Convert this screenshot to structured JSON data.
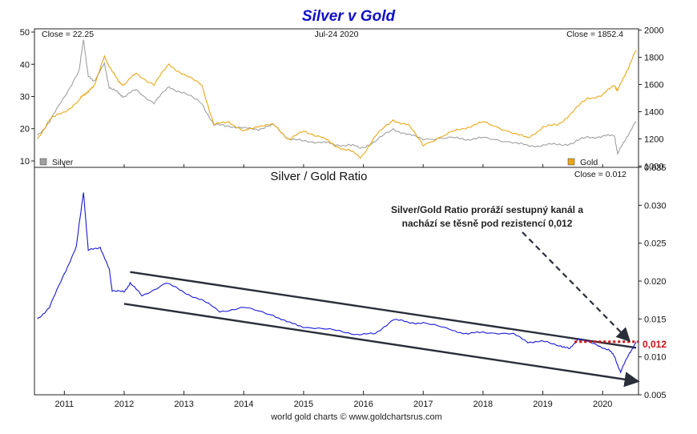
{
  "chart_data": [
    {
      "type": "line",
      "title": "Silver v Gold",
      "header_left": "Close = 22.25",
      "header_center": "Jul-24  2020",
      "header_right": "Close = 1852.4",
      "x_ticks": [
        "2011",
        "2012",
        "2013",
        "2014",
        "2015",
        "2016",
        "2017",
        "2018",
        "2019",
        "2020"
      ],
      "y_left_ticks": [
        "50",
        "40",
        "30",
        "20",
        "10"
      ],
      "y_left_range": [
        8,
        51
      ],
      "y_right_ticks": [
        "2000",
        "1800",
        "1600",
        "1400",
        "1200",
        "1000"
      ],
      "y_right_range": [
        990,
        2010
      ],
      "x": [
        2010.55,
        2010.75,
        2011.0,
        2011.25,
        2011.32,
        2011.4,
        2011.5,
        2011.67,
        2011.75,
        2011.9,
        2012.0,
        2012.2,
        2012.5,
        2012.75,
        2013.0,
        2013.3,
        2013.5,
        2013.75,
        2014.0,
        2014.25,
        2014.5,
        2014.75,
        2015.0,
        2015.3,
        2015.5,
        2015.75,
        2015.95,
        2016.2,
        2016.5,
        2016.75,
        2017.0,
        2017.5,
        2017.75,
        2018.0,
        2018.5,
        2018.75,
        2019.0,
        2019.25,
        2019.5,
        2019.75,
        2020.0,
        2020.2,
        2020.25,
        2020.4,
        2020.56
      ],
      "series": [
        {
          "name": "Silver",
          "color": "#a0a0a0",
          "axis": "left",
          "values": [
            18,
            22,
            30,
            38,
            48,
            36,
            35,
            40,
            33,
            31,
            30,
            32,
            28,
            33,
            31,
            28,
            21,
            21,
            20,
            20,
            21,
            17,
            16,
            16,
            15,
            15,
            14,
            16,
            20,
            18,
            17,
            17,
            16.8,
            17,
            16,
            14.5,
            15,
            15,
            15.5,
            17.5,
            17.5,
            18,
            12,
            17.5,
            22.25
          ]
        },
        {
          "name": "Gold",
          "color": "#e8a818",
          "axis": "right",
          "values": [
            1200,
            1340,
            1400,
            1480,
            1530,
            1540,
            1600,
            1800,
            1740,
            1620,
            1600,
            1680,
            1600,
            1750,
            1670,
            1600,
            1300,
            1330,
            1250,
            1300,
            1300,
            1200,
            1250,
            1220,
            1150,
            1120,
            1060,
            1220,
            1340,
            1300,
            1160,
            1250,
            1290,
            1320,
            1250,
            1200,
            1290,
            1300,
            1400,
            1500,
            1520,
            1600,
            1550,
            1700,
            1852.4
          ]
        }
      ],
      "legend": [
        "Silver",
        "Gold"
      ],
      "legend_position": "bottom"
    },
    {
      "type": "line",
      "title": "Silver  /  Gold Ratio",
      "header_right": "Close = 0.012",
      "x_ticks": [
        "2011",
        "2012",
        "2013",
        "2014",
        "2015",
        "2016",
        "2017",
        "2018",
        "2019",
        "2020"
      ],
      "y_right_ticks": [
        "0.035",
        "0.030",
        "0.025",
        "0.020",
        "0.015",
        "0.010",
        "0.005"
      ],
      "y_range": [
        0.005,
        0.035
      ],
      "x": [
        2010.55,
        2010.75,
        2011.0,
        2011.2,
        2011.32,
        2011.4,
        2011.6,
        2011.75,
        2011.8,
        2012.0,
        2012.1,
        2012.3,
        2012.7,
        2013.0,
        2013.3,
        2013.6,
        2014.0,
        2014.5,
        2014.75,
        2015.0,
        2015.5,
        2015.9,
        2016.2,
        2016.5,
        2016.75,
        2017.0,
        2017.5,
        2017.75,
        2018.0,
        2018.5,
        2018.75,
        2019.0,
        2019.3,
        2019.45,
        2019.6,
        2019.9,
        2020.1,
        2020.2,
        2020.3,
        2020.45,
        2020.56
      ],
      "series": [
        {
          "name": "Silver/Gold",
          "color": "#1a1ad8",
          "values": [
            0.015,
            0.0165,
            0.021,
            0.0245,
            0.0318,
            0.024,
            0.0245,
            0.0215,
            0.0188,
            0.0185,
            0.0198,
            0.018,
            0.0198,
            0.0185,
            0.0175,
            0.016,
            0.0165,
            0.0155,
            0.0145,
            0.014,
            0.0135,
            0.013,
            0.013,
            0.015,
            0.0145,
            0.0145,
            0.0135,
            0.013,
            0.0133,
            0.013,
            0.012,
            0.012,
            0.0115,
            0.011,
            0.0125,
            0.0115,
            0.011,
            0.01,
            0.008,
            0.0105,
            0.012
          ]
        }
      ],
      "channel_upper": {
        "x": [
          2012.1,
          2020.56
        ],
        "y": [
          0.0212,
          0.0112
        ],
        "label": ""
      },
      "channel_lower": {
        "x": [
          2012.0,
          2020.56
        ],
        "y": [
          0.017,
          0.0068
        ],
        "label": ""
      },
      "resistance": {
        "value": 0.012,
        "label": "0,012",
        "color": "#d01010"
      },
      "annotation": {
        "lines": [
          "Silver/Gold Ratio proráží sestupný kanál a",
          "nachází se těsně pod rezistencí 0,012"
        ]
      }
    }
  ],
  "footer": {
    "credit": "world gold charts © www.goldchartsrus.com"
  }
}
